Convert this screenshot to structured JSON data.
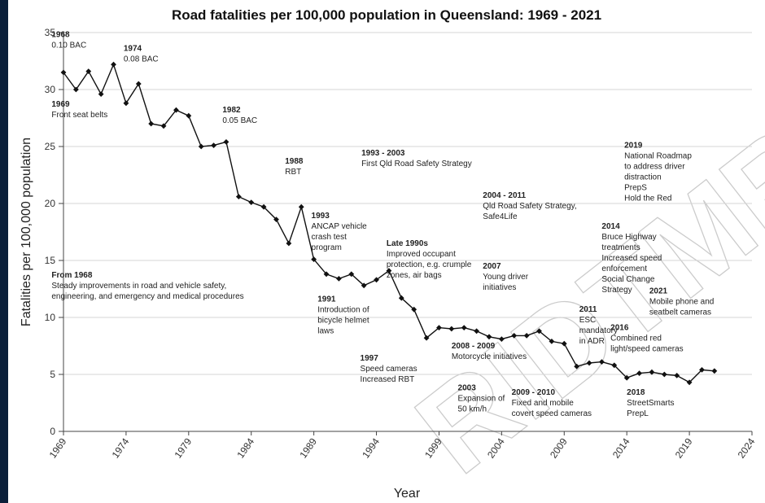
{
  "watermark": "RIDTMR",
  "chart_data": {
    "type": "line",
    "title": "Road fatalities per 100,000 population in Queensland: 1969 - 2021",
    "xlabel": "Year",
    "ylabel": "Fatalities per 100,000 population",
    "xlim": [
      1969,
      2024
    ],
    "ylim": [
      0,
      35
    ],
    "x_ticks": [
      1969,
      1974,
      1979,
      1984,
      1989,
      1994,
      1999,
      2004,
      2009,
      2014,
      2019,
      2024
    ],
    "y_ticks": [
      0,
      5,
      10,
      15,
      20,
      25,
      30,
      35
    ],
    "grid": "horizontal",
    "legend": "none",
    "line_color": "#111111",
    "series": [
      {
        "x": [
          1969,
          1970,
          1971,
          1972,
          1973,
          1974,
          1975,
          1976,
          1977,
          1978,
          1979,
          1980,
          1981,
          1982,
          1983,
          1984,
          1985,
          1986,
          1987,
          1988,
          1989,
          1990,
          1991,
          1992,
          1993,
          1994,
          1995,
          1996,
          1997,
          1998,
          1999,
          2000,
          2001,
          2002,
          2003,
          2004,
          2005,
          2006,
          2007,
          2008,
          2009,
          2010,
          2011,
          2012,
          2013,
          2014,
          2015,
          2016,
          2017,
          2018,
          2019,
          2020,
          2021
        ],
        "values": [
          31.5,
          30.0,
          31.6,
          29.6,
          32.2,
          28.8,
          30.5,
          27.0,
          26.8,
          28.2,
          27.7,
          25.0,
          25.1,
          25.4,
          20.6,
          20.1,
          19.7,
          18.6,
          16.5,
          19.7,
          15.1,
          13.8,
          13.4,
          13.8,
          12.8,
          13.3,
          14.1,
          11.7,
          10.7,
          8.2,
          9.1,
          9.0,
          9.1,
          8.8,
          8.3,
          8.1,
          8.4,
          8.4,
          8.8,
          7.9,
          7.7,
          5.7,
          6.0,
          6.1,
          5.8,
          4.7,
          5.1,
          5.2,
          5.0,
          4.9,
          4.3,
          5.4,
          5.3
        ]
      }
    ],
    "annotations": [
      {
        "id": "a1968",
        "x": 1968.05,
        "y": 34.6,
        "head": "1968",
        "lines": [
          "0.10 BAC"
        ]
      },
      {
        "id": "a1974",
        "x": 1973.8,
        "y": 33.4,
        "head": "1974",
        "lines": [
          "0.08 BAC"
        ]
      },
      {
        "id": "a1969",
        "x": 1968.05,
        "y": 28.5,
        "head": "1969",
        "lines": [
          "Front seat belts"
        ]
      },
      {
        "id": "a1982",
        "x": 1981.7,
        "y": 28.0,
        "head": "1982",
        "lines": [
          "0.05 BAC"
        ]
      },
      {
        "id": "a1988",
        "x": 1986.7,
        "y": 23.5,
        "head": "1988",
        "lines": [
          "RBT"
        ]
      },
      {
        "id": "a1993_2003",
        "x": 1992.8,
        "y": 24.2,
        "head": "1993 - 2003",
        "lines": [
          "First Qld Road Safety Strategy"
        ]
      },
      {
        "id": "a1993",
        "x": 1988.8,
        "y": 18.7,
        "head": "1993",
        "lines": [
          "ANCAP vehicle",
          "crash test",
          "program"
        ]
      },
      {
        "id": "alate90",
        "x": 1994.8,
        "y": 16.3,
        "head": "Late 1990s",
        "lines": [
          "Improved occupant",
          "protection, e.g. crumple",
          "zones, air bags"
        ]
      },
      {
        "id": "afrom1968",
        "x": 1968.05,
        "y": 13.5,
        "head": "From 1968",
        "lines": [
          "Steady improvements in road and vehicle safety,",
          "engineering, and emergency and medical procedures"
        ]
      },
      {
        "id": "a1991",
        "x": 1989.3,
        "y": 11.4,
        "head": "1991",
        "lines": [
          "Introduction of",
          "bicycle helmet",
          "laws"
        ]
      },
      {
        "id": "a2004_2011",
        "x": 2002.5,
        "y": 20.5,
        "head": "2004 - 2011",
        "lines": [
          "Qld Road Safety Strategy,",
          "Safe4Life"
        ]
      },
      {
        "id": "a2007",
        "x": 2002.5,
        "y": 14.3,
        "head": "2007",
        "lines": [
          "Young driver",
          "initiatives"
        ]
      },
      {
        "id": "a2014",
        "x": 2012.0,
        "y": 17.8,
        "head": "2014",
        "lines": [
          "Bruce Highway",
          "treatments",
          "Increased speed",
          "enforcement",
          "Social Change",
          "Strategy"
        ]
      },
      {
        "id": "a2019",
        "x": 2013.8,
        "y": 24.9,
        "head": "2019",
        "lines": [
          "National Roadmap",
          "to address driver",
          "distraction",
          "PrepS",
          "Hold the Red"
        ]
      },
      {
        "id": "a2021",
        "x": 2015.8,
        "y": 12.1,
        "head": "2021",
        "lines": [
          "Mobile phone and",
          "seatbelt cameras"
        ]
      },
      {
        "id": "a2011",
        "x": 2010.2,
        "y": 10.5,
        "head": "2011",
        "lines": [
          "ESC",
          "mandatory",
          "in ADR"
        ]
      },
      {
        "id": "a2016",
        "x": 2012.7,
        "y": 8.9,
        "head": "2016",
        "lines": [
          "Combined red",
          "light/speed cameras"
        ]
      },
      {
        "id": "a1997",
        "x": 1992.7,
        "y": 6.2,
        "head": "1997",
        "lines": [
          "Speed cameras",
          "Increased RBT"
        ]
      },
      {
        "id": "a2008_2009",
        "x": 2000.0,
        "y": 7.3,
        "head": "2008 - 2009",
        "lines": [
          "Motorcycle initiatives"
        ]
      },
      {
        "id": "a2003",
        "x": 2000.5,
        "y": 3.6,
        "head": "2003",
        "lines": [
          "Expansion of",
          "50 km/h"
        ]
      },
      {
        "id": "a2009_2010",
        "x": 2004.8,
        "y": 3.2,
        "head": "2009 - 2010",
        "lines": [
          "Fixed and mobile",
          "covert speed cameras"
        ]
      },
      {
        "id": "a2018",
        "x": 2014.0,
        "y": 3.2,
        "head": "2018",
        "lines": [
          "StreetSmarts",
          "PrepL"
        ]
      }
    ]
  }
}
